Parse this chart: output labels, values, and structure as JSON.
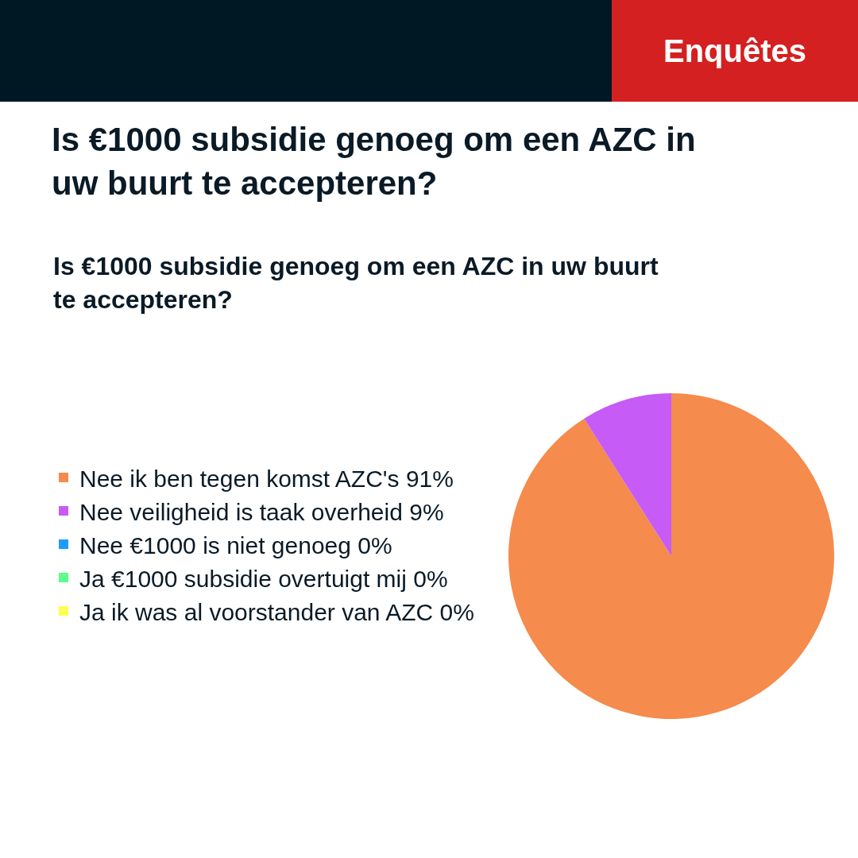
{
  "chart_data": {
    "type": "pie",
    "title": "Is €1000 subsidie genoeg om een AZC in uw buurt te accepteren?",
    "subtitle": "Is €1000 subsidie genoeg om een AZC in uw buurt te accepteren?",
    "annotations": [
      "Enquêtes"
    ],
    "categories": [
      "Nee ik ben tegen komst AZC's 91%",
      "Nee veiligheid is taak overheid 9%",
      "Nee €1000 is niet genoeg 0%",
      "Ja €1000 subsidie overtuigt mij 0%",
      "Ja ik was al voorstander van AZC 0%"
    ],
    "values": [
      91,
      9,
      0,
      0,
      0
    ],
    "colors": [
      "#f58b4c",
      "#c65bf5",
      "#1e9bff",
      "#5bff8a",
      "#fbff52"
    ],
    "legend": "left"
  }
}
